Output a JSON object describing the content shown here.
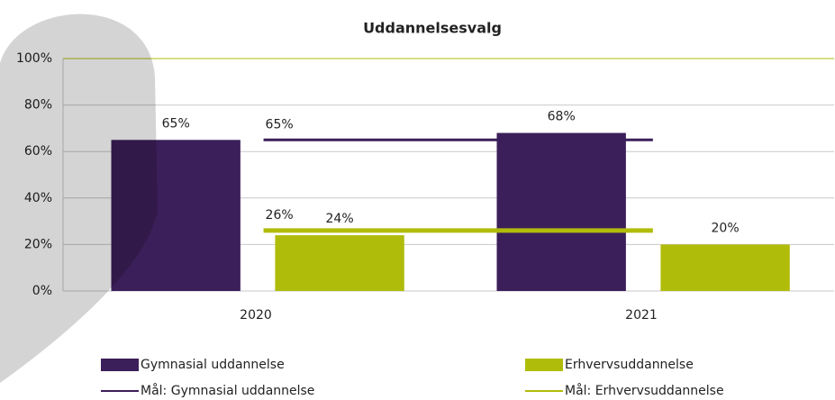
{
  "chart_data": {
    "type": "bar",
    "title": "Uddannelsesvalg",
    "categories": [
      "2020",
      "2021"
    ],
    "series": [
      {
        "name": "Gymnasial uddannelse",
        "color": "#3b1f5a",
        "values": [
          65,
          68
        ],
        "value_labels": [
          "65%",
          "68%"
        ]
      },
      {
        "name": "Erhvervsuddannelse",
        "color": "#b0bc0a",
        "values": [
          24,
          20
        ],
        "value_labels": [
          "24%",
          "20%"
        ]
      }
    ],
    "targets": [
      {
        "name": "Mål: Gymnasial uddannelse",
        "color": "#3b1f5a",
        "value": 65,
        "value_label": "65%"
      },
      {
        "name": "Mål: Erhvervsuddannelse",
        "color": "#b0bc0a",
        "value": 26,
        "value_label": "26%"
      }
    ],
    "ylim": [
      0,
      100
    ],
    "yticks": [
      {
        "value": 0,
        "label": "0%"
      },
      {
        "value": 20,
        "label": "20%"
      },
      {
        "value": 40,
        "label": "40%"
      },
      {
        "value": 60,
        "label": "60%"
      },
      {
        "value": 80,
        "label": "80%"
      },
      {
        "value": 100,
        "label": "100%"
      }
    ],
    "grid": true
  }
}
